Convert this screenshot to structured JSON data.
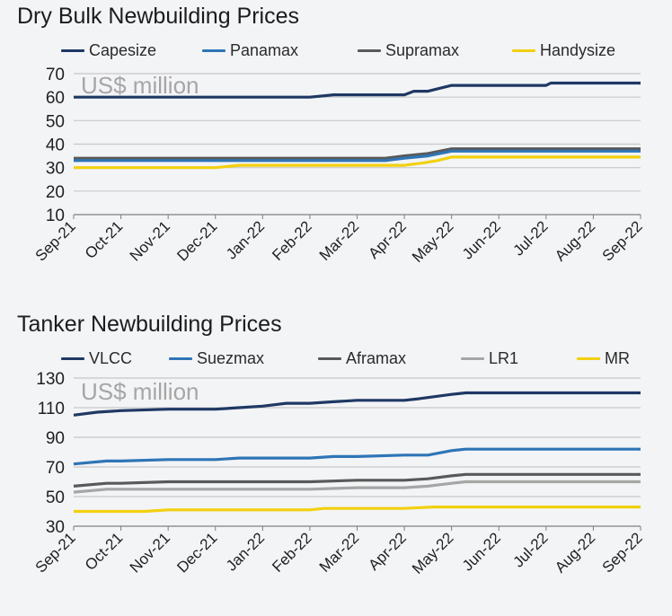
{
  "colors": {
    "navy": "#1f3864",
    "blue": "#2e75b6",
    "darkgrey": "#595959",
    "lightgrey": "#a6a6a6",
    "yellow": "#f2d00f",
    "grid": "#c8c8c8"
  },
  "chart_data": [
    {
      "type": "line",
      "title": "Dry Bulk Newbuilding Prices",
      "unit_label": "US$ million",
      "xlabel": "",
      "ylabel": "US$ million",
      "ylim": [
        10,
        70
      ],
      "yticks": [
        10,
        20,
        30,
        40,
        50,
        60,
        70
      ],
      "categories": [
        "Sep-21",
        "Oct-21",
        "Nov-21",
        "Dec-21",
        "Jan-22",
        "Feb-22",
        "Mar-22",
        "Apr-22",
        "May-22",
        "Jun-22",
        "Jul-22",
        "Aug-22",
        "Sep-22"
      ],
      "legend_position": "top",
      "series": [
        {
          "name": "Capesize",
          "color": "#1f3864",
          "points": [
            [
              0,
              60
            ],
            [
              1,
              60
            ],
            [
              2,
              60
            ],
            [
              3,
              60
            ],
            [
              4,
              60
            ],
            [
              5,
              60
            ],
            [
              5.5,
              61
            ],
            [
              6,
              61
            ],
            [
              7,
              61
            ],
            [
              7.2,
              62.5
            ],
            [
              7.5,
              62.5
            ],
            [
              8,
              65
            ],
            [
              9,
              65
            ],
            [
              10,
              65
            ],
            [
              10.1,
              66
            ],
            [
              11,
              66
            ],
            [
              12,
              66
            ]
          ]
        },
        {
          "name": "Panamax",
          "color": "#2e75b6",
          "points": [
            [
              0,
              33
            ],
            [
              1,
              33
            ],
            [
              2,
              33
            ],
            [
              3,
              33
            ],
            [
              4,
              33
            ],
            [
              5,
              33
            ],
            [
              6,
              33
            ],
            [
              6.6,
              33
            ],
            [
              7,
              34
            ],
            [
              7.5,
              35
            ],
            [
              8,
              37
            ],
            [
              9,
              37
            ],
            [
              10,
              37
            ],
            [
              11,
              37
            ],
            [
              12,
              37
            ]
          ]
        },
        {
          "name": "Supramax",
          "color": "#595959",
          "points": [
            [
              0,
              34
            ],
            [
              1,
              34
            ],
            [
              2,
              34
            ],
            [
              3,
              34
            ],
            [
              4,
              34
            ],
            [
              5,
              34
            ],
            [
              6,
              34
            ],
            [
              6.6,
              34
            ],
            [
              7,
              35
            ],
            [
              7.5,
              36
            ],
            [
              8,
              38
            ],
            [
              9,
              38
            ],
            [
              10,
              38
            ],
            [
              11,
              38
            ],
            [
              12,
              38
            ]
          ]
        },
        {
          "name": "Handysize",
          "color": "#f2d00f",
          "points": [
            [
              0,
              30
            ],
            [
              1,
              30
            ],
            [
              2,
              30
            ],
            [
              3,
              30
            ],
            [
              3.5,
              31
            ],
            [
              4,
              31
            ],
            [
              5,
              31
            ],
            [
              6,
              31
            ],
            [
              7,
              31
            ],
            [
              7.4,
              32
            ],
            [
              7.7,
              33
            ],
            [
              8,
              34.5
            ],
            [
              9,
              34.5
            ],
            [
              10,
              34.5
            ],
            [
              11,
              34.5
            ],
            [
              12,
              34.5
            ]
          ]
        }
      ]
    },
    {
      "type": "line",
      "title": "Tanker Newbuilding Prices",
      "unit_label": "US$ million",
      "xlabel": "",
      "ylabel": "US$ million",
      "ylim": [
        30,
        130
      ],
      "yticks": [
        30,
        50,
        70,
        90,
        110,
        130
      ],
      "categories": [
        "Sep-21",
        "Oct-21",
        "Nov-21",
        "Dec-21",
        "Jan-22",
        "Feb-22",
        "Mar-22",
        "Apr-22",
        "May-22",
        "Jun-22",
        "Jul-22",
        "Aug-22",
        "Sep-22"
      ],
      "legend_position": "top",
      "series": [
        {
          "name": "VLCC",
          "color": "#1f3864",
          "points": [
            [
              0,
              105
            ],
            [
              0.5,
              107
            ],
            [
              1,
              108
            ],
            [
              2,
              109
            ],
            [
              3,
              109
            ],
            [
              3.5,
              110
            ],
            [
              4,
              111
            ],
            [
              4.5,
              113
            ],
            [
              5,
              113
            ],
            [
              5.5,
              114
            ],
            [
              6,
              115
            ],
            [
              7,
              115
            ],
            [
              7.3,
              116
            ],
            [
              8,
              119
            ],
            [
              8.3,
              120
            ],
            [
              9,
              120
            ],
            [
              10,
              120
            ],
            [
              11,
              120
            ],
            [
              12,
              120
            ]
          ]
        },
        {
          "name": "Suezmax",
          "color": "#2e75b6",
          "points": [
            [
              0,
              72
            ],
            [
              0.7,
              74
            ],
            [
              1,
              74
            ],
            [
              2,
              75
            ],
            [
              3,
              75
            ],
            [
              3.5,
              76
            ],
            [
              4,
              76
            ],
            [
              5,
              76
            ],
            [
              5.5,
              77
            ],
            [
              6,
              77
            ],
            [
              7,
              78
            ],
            [
              7.5,
              78
            ],
            [
              8,
              81
            ],
            [
              8.3,
              82
            ],
            [
              9,
              82
            ],
            [
              10,
              82
            ],
            [
              11,
              82
            ],
            [
              12,
              82
            ]
          ]
        },
        {
          "name": "Aframax",
          "color": "#595959",
          "points": [
            [
              0,
              57
            ],
            [
              0.7,
              59
            ],
            [
              1,
              59
            ],
            [
              2,
              60
            ],
            [
              3,
              60
            ],
            [
              4,
              60
            ],
            [
              5,
              60
            ],
            [
              6,
              61
            ],
            [
              7,
              61
            ],
            [
              7.5,
              62
            ],
            [
              8,
              64
            ],
            [
              8.3,
              65
            ],
            [
              9,
              65
            ],
            [
              10,
              65
            ],
            [
              11,
              65
            ],
            [
              12,
              65
            ]
          ]
        },
        {
          "name": "LR1",
          "color": "#a6a6a6",
          "points": [
            [
              0,
              53
            ],
            [
              0.7,
              55
            ],
            [
              1,
              55
            ],
            [
              2,
              55
            ],
            [
              3,
              55
            ],
            [
              4,
              55
            ],
            [
              5,
              55
            ],
            [
              6,
              56
            ],
            [
              7,
              56
            ],
            [
              7.5,
              57
            ],
            [
              8,
              59
            ],
            [
              8.3,
              60
            ],
            [
              9,
              60
            ],
            [
              10,
              60
            ],
            [
              11,
              60
            ],
            [
              12,
              60
            ]
          ]
        },
        {
          "name": "MR",
          "color": "#f2d00f",
          "points": [
            [
              0,
              40
            ],
            [
              1,
              40
            ],
            [
              1.5,
              40
            ],
            [
              2,
              41
            ],
            [
              3,
              41
            ],
            [
              4,
              41
            ],
            [
              5,
              41
            ],
            [
              5.3,
              42
            ],
            [
              6,
              42
            ],
            [
              7,
              42
            ],
            [
              7.6,
              43
            ],
            [
              8,
              43
            ],
            [
              9,
              43
            ],
            [
              10,
              43
            ],
            [
              11,
              43
            ],
            [
              12,
              43
            ]
          ]
        }
      ]
    }
  ]
}
